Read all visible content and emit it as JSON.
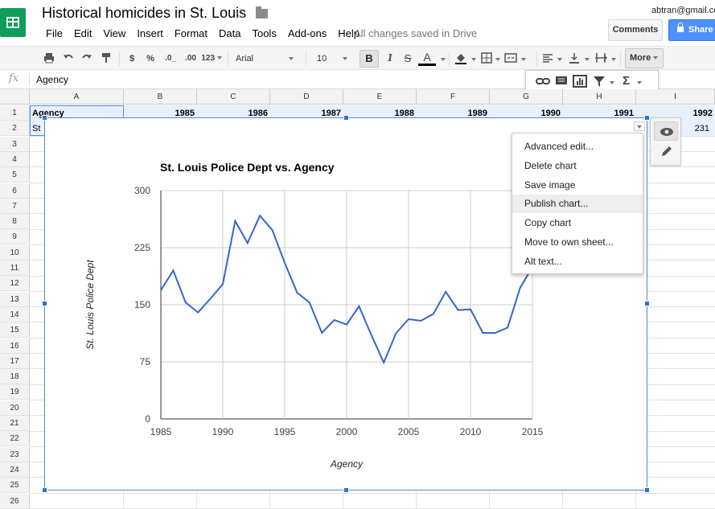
{
  "header": {
    "title": "Historical homicides in St. Louis",
    "account": "abtran@gmail.co",
    "save_status": "All changes saved in Drive",
    "comments_label": "Comments",
    "share_label": "Share"
  },
  "menu": [
    "File",
    "Edit",
    "View",
    "Insert",
    "Format",
    "Data",
    "Tools",
    "Add-ons",
    "Help"
  ],
  "toolbar": {
    "currency": "$",
    "percent": "%",
    "dec_less": ".0_",
    "dec_more": ".00",
    "number_format": "123",
    "font": "Arial",
    "font_size": "10",
    "bold": "B",
    "italic": "I",
    "strike": "S",
    "text_color": "A",
    "more_label": "More",
    "sum_label": "Σ"
  },
  "formula_bar": {
    "fx": "fx",
    "value": "Agency"
  },
  "grid": {
    "columns": [
      "A",
      "B",
      "C",
      "D",
      "E",
      "F",
      "G",
      "H",
      "I"
    ],
    "rows": [
      "1",
      "2",
      "3",
      "4",
      "5",
      "6",
      "7",
      "8",
      "9",
      "10",
      "11",
      "12",
      "13",
      "14",
      "15",
      "16",
      "17",
      "18",
      "19",
      "20",
      "21",
      "22",
      "23",
      "24",
      "25",
      "26"
    ],
    "row1": [
      "Agency",
      "1985",
      "1986",
      "1987",
      "1988",
      "1989",
      "1990",
      "1991",
      "1992"
    ],
    "row2_a": "St",
    "row2_i": "231"
  },
  "context_menu": [
    "Advanced edit...",
    "Delete chart",
    "Save image",
    "Publish chart...",
    "Copy chart",
    "Move to own sheet...",
    "Alt text..."
  ],
  "chart_data": {
    "type": "line",
    "title": "St. Louis Police Dept vs. Agency",
    "xlabel": "Agency",
    "ylabel": "St. Louis Police Dept",
    "x_ticks": [
      "1985",
      "1990",
      "1995",
      "2000",
      "2005",
      "2010",
      "2015"
    ],
    "y_ticks": [
      "0",
      "75",
      "150",
      "225",
      "300"
    ],
    "xlim": [
      1985,
      2015
    ],
    "ylim": [
      0,
      300
    ],
    "line_color": "#3366cc",
    "grid": true,
    "series": [
      {
        "x": [
          1985,
          1986,
          1987,
          1988,
          1989,
          1990,
          1991,
          1992,
          1993,
          1994,
          1995,
          1996,
          1997,
          1998,
          1999,
          2000,
          2001,
          2002,
          2003,
          2004,
          2005,
          2006,
          2007,
          2008,
          2009,
          2010,
          2011,
          2012,
          2013,
          2014,
          2015
        ],
        "values": [
          169,
          195,
          153,
          140,
          158,
          177,
          260,
          231,
          267,
          248,
          205,
          166,
          153,
          113,
          130,
          124,
          148,
          110,
          74,
          113,
          131,
          129,
          138,
          167,
          143,
          144,
          113,
          113,
          120,
          172,
          200
        ]
      }
    ]
  }
}
